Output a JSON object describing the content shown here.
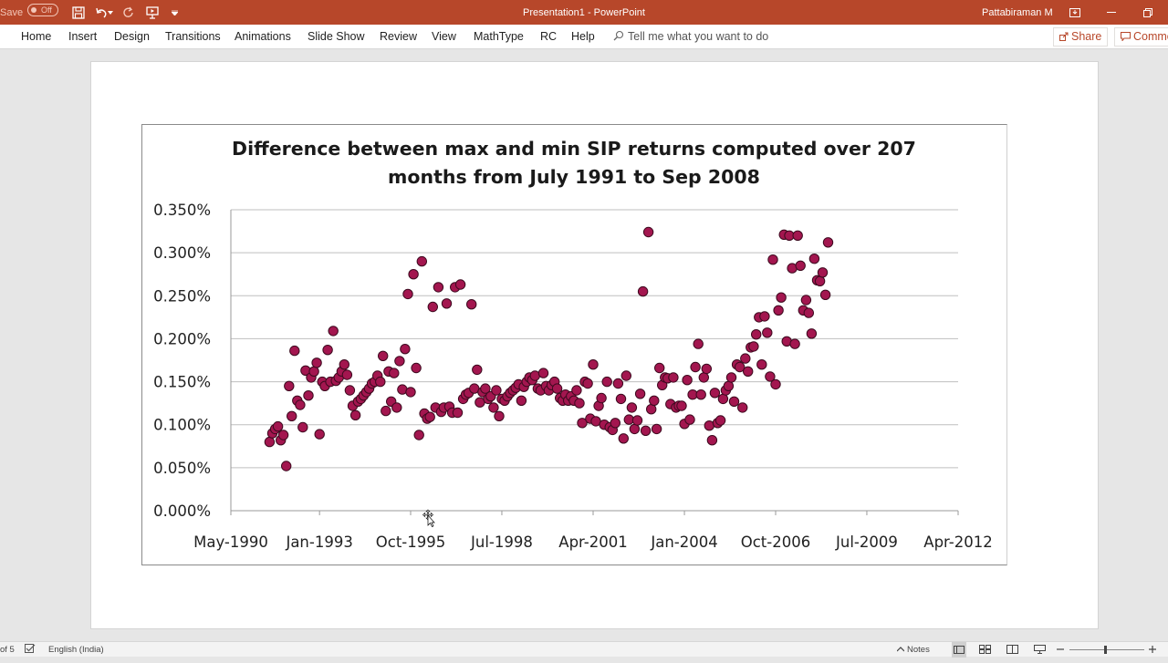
{
  "titlebar": {
    "autosave_label": "Save",
    "autosave_state": "Off",
    "doc_title": "Presentation1  -  PowerPoint",
    "user_name": "Pattabiraman M"
  },
  "ribbon": {
    "tabs": [
      "Home",
      "Insert",
      "Design",
      "Transitions",
      "Animations",
      "Slide Show",
      "Review",
      "View",
      "MathType",
      "RC",
      "Help"
    ],
    "tell_me": "Tell me what you want to do",
    "share": "Share",
    "comments": "Comments"
  },
  "statusbar": {
    "slide_info": "of 5",
    "language": "English (India)",
    "notes": "Notes"
  },
  "colors": {
    "titlebar": "#b7472a",
    "marker_fill": "#a3164f",
    "marker_stroke": "#3d0a1f",
    "grid": "#bfbfbf"
  },
  "chart_data": {
    "type": "scatter",
    "title_lines": [
      "Difference between max and min SIP returns computed over 207",
      "months from July 1991 to Sep 2008"
    ],
    "xlabel": "",
    "ylabel": "",
    "xlim": [
      "1990-05-01",
      "2012-04-01"
    ],
    "ylim": [
      0,
      0.0035
    ],
    "x_ticks": [
      "1990-05-01",
      "1993-01-01",
      "1995-10-01",
      "1998-07-01",
      "2001-04-01",
      "2004-01-01",
      "2006-10-01",
      "2009-07-01",
      "2012-04-01"
    ],
    "x_tick_labels": [
      "May-1990",
      "Jan-1993",
      "Oct-1995",
      "Jul-1998",
      "Apr-2001",
      "Jan-2004",
      "Oct-2006",
      "Jul-2009",
      "Apr-2012"
    ],
    "y_tick_labels": [
      "0.000%",
      "0.050%",
      "0.100%",
      "0.150%",
      "0.200%",
      "0.250%",
      "0.300%",
      "0.350%"
    ],
    "grid": "horizontal",
    "legend": "none",
    "points": [
      [
        "1991-07-01",
        0.0008
      ],
      [
        "1991-08-01",
        0.0009
      ],
      [
        "1991-09-01",
        0.00095
      ],
      [
        "1991-10-01",
        0.00098
      ],
      [
        "1991-11-01",
        0.00082
      ],
      [
        "1991-12-01",
        0.00088
      ],
      [
        "1992-01-01",
        0.00052
      ],
      [
        "1992-02-01",
        0.00145
      ],
      [
        "1992-03-01",
        0.0011
      ],
      [
        "1992-04-01",
        0.00186
      ],
      [
        "1992-05-01",
        0.00128
      ],
      [
        "1992-06-01",
        0.00123
      ],
      [
        "1992-07-01",
        0.00097
      ],
      [
        "1992-08-01",
        0.00163
      ],
      [
        "1992-09-01",
        0.00134
      ],
      [
        "1992-10-01",
        0.00155
      ],
      [
        "1992-11-01",
        0.00162
      ],
      [
        "1992-12-01",
        0.00172
      ],
      [
        "1993-01-01",
        0.00089
      ],
      [
        "1993-02-01",
        0.0015
      ],
      [
        "1993-03-01",
        0.00145
      ],
      [
        "1993-04-01",
        0.00187
      ],
      [
        "1993-05-01",
        0.0015
      ],
      [
        "1993-06-01",
        0.00209
      ],
      [
        "1993-07-01",
        0.00151
      ],
      [
        "1993-08-01",
        0.00155
      ],
      [
        "1993-09-01",
        0.00162
      ],
      [
        "1993-10-01",
        0.0017
      ],
      [
        "1993-11-01",
        0.00158
      ],
      [
        "1993-12-01",
        0.0014
      ],
      [
        "1994-01-01",
        0.00122
      ],
      [
        "1994-02-01",
        0.00111
      ],
      [
        "1994-03-01",
        0.00127
      ],
      [
        "1994-04-01",
        0.0013
      ],
      [
        "1994-05-01",
        0.00134
      ],
      [
        "1994-06-01",
        0.00138
      ],
      [
        "1994-07-01",
        0.00142
      ],
      [
        "1994-08-01",
        0.00148
      ],
      [
        "1994-09-01",
        0.0015
      ],
      [
        "1994-10-01",
        0.00157
      ],
      [
        "1994-11-01",
        0.0015
      ],
      [
        "1994-12-01",
        0.0018
      ],
      [
        "1995-01-01",
        0.00116
      ],
      [
        "1995-02-01",
        0.00162
      ],
      [
        "1995-03-01",
        0.00127
      ],
      [
        "1995-04-01",
        0.0016
      ],
      [
        "1995-05-01",
        0.0012
      ],
      [
        "1995-06-01",
        0.00174
      ],
      [
        "1995-07-01",
        0.00141
      ],
      [
        "1995-08-01",
        0.00188
      ],
      [
        "1995-09-01",
        0.00252
      ],
      [
        "1995-10-01",
        0.00138
      ],
      [
        "1995-11-01",
        0.00275
      ],
      [
        "1995-12-01",
        0.00166
      ],
      [
        "1996-01-01",
        0.00088
      ],
      [
        "1996-02-01",
        0.0029
      ],
      [
        "1996-03-01",
        0.00113
      ],
      [
        "1996-04-01",
        0.00107
      ],
      [
        "1996-05-01",
        0.00109
      ],
      [
        "1996-06-01",
        0.00237
      ],
      [
        "1996-07-01",
        0.0012
      ],
      [
        "1996-08-01",
        0.0026
      ],
      [
        "1996-09-01",
        0.00115
      ],
      [
        "1996-10-01",
        0.0012
      ],
      [
        "1996-11-01",
        0.00241
      ],
      [
        "1996-12-01",
        0.00121
      ],
      [
        "1997-01-01",
        0.00114
      ],
      [
        "1997-02-01",
        0.0026
      ],
      [
        "1997-03-01",
        0.00114
      ],
      [
        "1997-04-01",
        0.00263
      ],
      [
        "1997-05-01",
        0.0013
      ],
      [
        "1997-06-01",
        0.00135
      ],
      [
        "1997-07-01",
        0.00137
      ],
      [
        "1997-08-01",
        0.0024
      ],
      [
        "1997-09-01",
        0.00142
      ],
      [
        "1997-10-01",
        0.00164
      ],
      [
        "1997-11-01",
        0.00126
      ],
      [
        "1997-12-01",
        0.00138
      ],
      [
        "1998-01-01",
        0.00142
      ],
      [
        "1998-02-01",
        0.0013
      ],
      [
        "1998-03-01",
        0.00133
      ],
      [
        "1998-04-01",
        0.0012
      ],
      [
        "1998-05-01",
        0.0014
      ],
      [
        "1998-06-01",
        0.0011
      ],
      [
        "1998-07-01",
        0.0013
      ],
      [
        "1998-08-01",
        0.00128
      ],
      [
        "1998-09-01",
        0.00133
      ],
      [
        "1998-10-01",
        0.00137
      ],
      [
        "1998-11-01",
        0.0014
      ],
      [
        "1998-12-01",
        0.00143
      ],
      [
        "1999-01-01",
        0.00147
      ],
      [
        "1999-02-01",
        0.00128
      ],
      [
        "1999-03-01",
        0.00144
      ],
      [
        "1999-04-01",
        0.0015
      ],
      [
        "1999-05-01",
        0.00155
      ],
      [
        "1999-06-01",
        0.00152
      ],
      [
        "1999-07-01",
        0.00157
      ],
      [
        "1999-08-01",
        0.00142
      ],
      [
        "1999-09-01",
        0.0014
      ],
      [
        "1999-10-01",
        0.0016
      ],
      [
        "1999-11-01",
        0.00145
      ],
      [
        "1999-12-01",
        0.0014
      ],
      [
        "2000-01-01",
        0.00146
      ],
      [
        "2000-02-01",
        0.0015
      ],
      [
        "2000-03-01",
        0.00142
      ],
      [
        "2000-04-01",
        0.00131
      ],
      [
        "2000-05-01",
        0.00128
      ],
      [
        "2000-06-01",
        0.00135
      ],
      [
        "2000-07-01",
        0.00128
      ],
      [
        "2000-08-01",
        0.00133
      ],
      [
        "2000-09-01",
        0.00128
      ],
      [
        "2000-10-01",
        0.0014
      ],
      [
        "2000-11-01",
        0.00125
      ],
      [
        "2000-12-01",
        0.00102
      ],
      [
        "2001-01-01",
        0.0015
      ],
      [
        "2001-02-01",
        0.00148
      ],
      [
        "2001-03-01",
        0.00107
      ],
      [
        "2001-04-01",
        0.0017
      ],
      [
        "2001-05-01",
        0.00104
      ],
      [
        "2001-06-01",
        0.00122
      ],
      [
        "2001-07-01",
        0.00131
      ],
      [
        "2001-08-01",
        0.001
      ],
      [
        "2001-09-01",
        0.0015
      ],
      [
        "2001-10-01",
        0.00097
      ],
      [
        "2001-11-01",
        0.00094
      ],
      [
        "2001-12-01",
        0.00102
      ],
      [
        "2002-01-01",
        0.00148
      ],
      [
        "2002-02-01",
        0.0013
      ],
      [
        "2002-03-01",
        0.00084
      ],
      [
        "2002-04-01",
        0.00157
      ],
      [
        "2002-05-01",
        0.00106
      ],
      [
        "2002-06-01",
        0.0012
      ],
      [
        "2002-07-01",
        0.00095
      ],
      [
        "2002-08-01",
        0.00105
      ],
      [
        "2002-09-01",
        0.00136
      ],
      [
        "2002-10-01",
        0.00255
      ],
      [
        "2002-11-01",
        0.00093
      ],
      [
        "2002-12-01",
        0.00324
      ],
      [
        "2003-01-01",
        0.00118
      ],
      [
        "2003-02-01",
        0.00128
      ],
      [
        "2003-03-01",
        0.00095
      ],
      [
        "2003-04-01",
        0.00166
      ],
      [
        "2003-05-01",
        0.00146
      ],
      [
        "2003-06-01",
        0.00155
      ],
      [
        "2003-07-01",
        0.00154
      ],
      [
        "2003-08-01",
        0.00124
      ],
      [
        "2003-09-01",
        0.00155
      ],
      [
        "2003-10-01",
        0.0012
      ],
      [
        "2003-11-01",
        0.00122
      ],
      [
        "2003-12-01",
        0.00122
      ],
      [
        "2004-01-01",
        0.00101
      ],
      [
        "2004-02-01",
        0.00152
      ],
      [
        "2004-03-01",
        0.00106
      ],
      [
        "2004-04-01",
        0.00135
      ],
      [
        "2004-05-01",
        0.00167
      ],
      [
        "2004-06-01",
        0.00194
      ],
      [
        "2004-07-01",
        0.00135
      ],
      [
        "2004-08-01",
        0.00155
      ],
      [
        "2004-09-01",
        0.00165
      ],
      [
        "2004-10-01",
        0.00099
      ],
      [
        "2004-11-01",
        0.00082
      ],
      [
        "2004-12-01",
        0.00137
      ],
      [
        "2005-01-01",
        0.00102
      ],
      [
        "2005-02-01",
        0.00105
      ],
      [
        "2005-03-01",
        0.0013
      ],
      [
        "2005-04-01",
        0.0014
      ],
      [
        "2005-05-01",
        0.00145
      ],
      [
        "2005-06-01",
        0.00155
      ],
      [
        "2005-07-01",
        0.00127
      ],
      [
        "2005-08-01",
        0.0017
      ],
      [
        "2005-09-01",
        0.00167
      ],
      [
        "2005-10-01",
        0.0012
      ],
      [
        "2005-11-01",
        0.00177
      ],
      [
        "2005-12-01",
        0.00162
      ],
      [
        "2006-01-01",
        0.0019
      ],
      [
        "2006-02-01",
        0.00191
      ],
      [
        "2006-03-01",
        0.00205
      ],
      [
        "2006-04-01",
        0.00225
      ],
      [
        "2006-05-01",
        0.0017
      ],
      [
        "2006-06-01",
        0.00226
      ],
      [
        "2006-07-01",
        0.00207
      ],
      [
        "2006-08-01",
        0.00156
      ],
      [
        "2006-09-01",
        0.00292
      ],
      [
        "2006-10-01",
        0.00147
      ],
      [
        "2006-11-01",
        0.00233
      ],
      [
        "2006-12-01",
        0.00248
      ],
      [
        "2007-01-01",
        0.00321
      ],
      [
        "2007-02-01",
        0.00197
      ],
      [
        "2007-03-01",
        0.0032
      ],
      [
        "2007-04-01",
        0.00282
      ],
      [
        "2007-05-01",
        0.00194
      ],
      [
        "2007-06-01",
        0.0032
      ],
      [
        "2007-07-01",
        0.00285
      ],
      [
        "2007-08-01",
        0.00233
      ],
      [
        "2007-09-01",
        0.00245
      ],
      [
        "2007-10-01",
        0.0023
      ],
      [
        "2007-11-01",
        0.00206
      ],
      [
        "2007-12-01",
        0.00293
      ],
      [
        "2008-01-01",
        0.00268
      ],
      [
        "2008-02-01",
        0.00267
      ],
      [
        "2008-03-01",
        0.00277
      ],
      [
        "2008-04-01",
        0.00251
      ],
      [
        "2008-05-01",
        0.00312
      ]
    ]
  }
}
